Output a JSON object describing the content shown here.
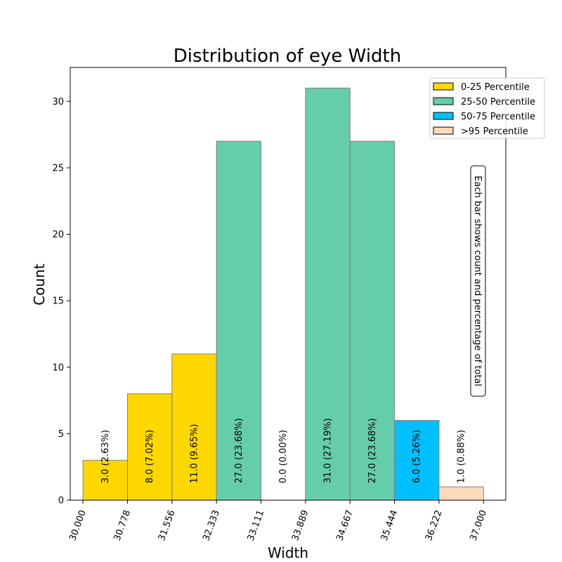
{
  "chart_data": {
    "type": "bar",
    "title": "Distribution of eye Width",
    "xlabel": "Width",
    "ylabel": "Count",
    "bin_edges": [
      30.0,
      30.778,
      31.556,
      32.333,
      33.111,
      33.889,
      34.667,
      35.444,
      36.222,
      37.0
    ],
    "x_tick_labels": [
      "30.000",
      "30.778",
      "31.556",
      "32.333",
      "33.111",
      "33.889",
      "34.667",
      "35.444",
      "36.222",
      "37.000"
    ],
    "xlim": [
      29.778,
      37.389
    ],
    "ylim": [
      0,
      32.55
    ],
    "y_ticks": [
      0,
      5,
      10,
      15,
      20,
      25,
      30
    ],
    "bars": [
      {
        "value": 3,
        "label": "3.0  (2.63%)",
        "group": "0-25 Percentile"
      },
      {
        "value": 8,
        "label": "8.0  (7.02%)",
        "group": "0-25 Percentile"
      },
      {
        "value": 11,
        "label": "11.0  (9.65%)",
        "group": "0-25 Percentile"
      },
      {
        "value": 27,
        "label": "27.0  (23.68%)",
        "group": "25-50 Percentile"
      },
      {
        "value": 0,
        "label": "0.0  (0.00%)",
        "group": "25-50 Percentile"
      },
      {
        "value": 31,
        "label": "31.0  (27.19%)",
        "group": "25-50 Percentile"
      },
      {
        "value": 27,
        "label": "27.0  (23.68%)",
        "group": "25-50 Percentile"
      },
      {
        "value": 6,
        "label": "6.0  (5.26%)",
        "group": "50-75 Percentile"
      },
      {
        "value": 1,
        "label": "1.0  (0.88%)",
        "group": ">95 Percentile"
      }
    ],
    "legend": {
      "placement": "top-right",
      "entries": [
        {
          "name": "0-25 Percentile",
          "color": "#ffd700"
        },
        {
          "name": "25-50 Percentile",
          "color": "#66cdaa"
        },
        {
          "name": "50-75 Percentile",
          "color": "#00bfff"
        },
        {
          "name": ">95 Percentile",
          "color": "#ffdab9"
        }
      ]
    },
    "annotation": "Each bar shows count and percentage of total",
    "grid": false,
    "bar_edge_color": "#808080"
  }
}
